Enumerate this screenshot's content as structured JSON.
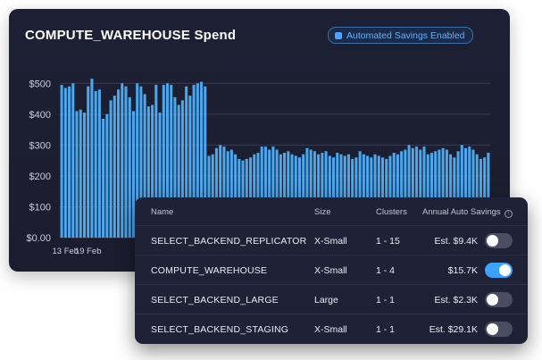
{
  "chart_card": {
    "title": "COMPUTE_WAREHOUSE Spend",
    "badge_label": "Automated Savings Enabled",
    "badge_icon": "square-check-icon"
  },
  "chart_data": {
    "type": "bar",
    "title": "COMPUTE_WAREHOUSE Spend",
    "y_ticks": [
      "$0.00",
      "$100",
      "$200",
      "$300",
      "$400",
      "$500"
    ],
    "ylim": [
      0,
      550
    ],
    "x_tick_labels": [
      {
        "label": "13 Feb",
        "index": 1
      },
      {
        "label": "19 Feb",
        "index": 7
      }
    ],
    "values": [
      495,
      485,
      490,
      500,
      410,
      415,
      405,
      490,
      515,
      475,
      480,
      385,
      400,
      445,
      460,
      480,
      500,
      490,
      455,
      410,
      500,
      490,
      465,
      425,
      430,
      495,
      405,
      495,
      500,
      495,
      455,
      430,
      445,
      490,
      460,
      495,
      500,
      505,
      490,
      265,
      270,
      290,
      300,
      295,
      280,
      285,
      270,
      255,
      250,
      255,
      260,
      270,
      275,
      295,
      295,
      285,
      295,
      285,
      270,
      275,
      280,
      270,
      265,
      260,
      270,
      290,
      285,
      280,
      270,
      275,
      280,
      265,
      260,
      275,
      270,
      265,
      270,
      255,
      260,
      280,
      270,
      265,
      260,
      270,
      265,
      260,
      255,
      265,
      275,
      270,
      280,
      285,
      300,
      290,
      295,
      285,
      295,
      270,
      275,
      280,
      285,
      290,
      285,
      270,
      260,
      280,
      300,
      290,
      295,
      285,
      270,
      255,
      260,
      275
    ]
  },
  "table": {
    "headers": {
      "name": "Name",
      "size": "Size",
      "clusters": "Clusters",
      "savings": "Annual Auto Savings"
    },
    "rows": [
      {
        "name": "SELECT_BACKEND_REPLICATOR",
        "size": "X-Small",
        "clusters": "1 - 15",
        "savings": "Est. $9.4K",
        "enabled": false
      },
      {
        "name": "COMPUTE_WAREHOUSE",
        "size": "X-Small",
        "clusters": "1 - 4",
        "savings": "$15.7K",
        "enabled": true
      },
      {
        "name": "SELECT_BACKEND_LARGE",
        "size": "Large",
        "clusters": "1 - 1",
        "savings": "Est. $2.3K",
        "enabled": false
      },
      {
        "name": "SELECT_BACKEND_STAGING",
        "size": "X-Small",
        "clusters": "1 - 1",
        "savings": "Est. $29.1K",
        "enabled": false
      }
    ]
  },
  "colors": {
    "bar": "#4aa8ee",
    "grid": "#3a3e55",
    "toggle_on": "#3aa2ff",
    "toggle_off": "#4a4e60"
  }
}
